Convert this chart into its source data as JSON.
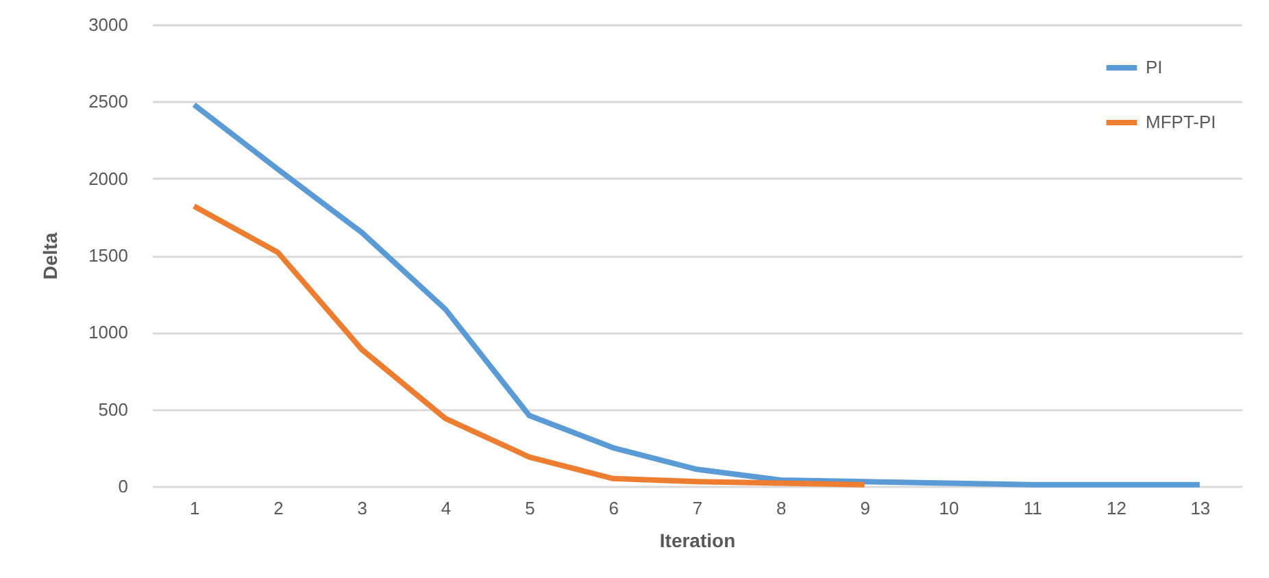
{
  "chart_data": {
    "type": "line",
    "xlabel": "Iteration",
    "ylabel": "Delta",
    "x": [
      1,
      2,
      3,
      4,
      5,
      6,
      7,
      8,
      9,
      10,
      11,
      12,
      13
    ],
    "xlim": [
      0.5,
      13.5
    ],
    "xticks": [
      1,
      2,
      3,
      4,
      5,
      6,
      7,
      8,
      9,
      10,
      11,
      12,
      13
    ],
    "series": [
      {
        "name": "PI",
        "color": "#5b9bd5",
        "values": [
          2480,
          2060,
          1650,
          1150,
          460,
          250,
          110,
          40,
          30,
          20,
          10,
          10,
          10
        ]
      },
      {
        "name": "MFPT-PI",
        "color": "#ed7d31",
        "values": [
          1820,
          1520,
          890,
          440,
          190,
          50,
          30,
          20,
          10,
          null,
          null,
          null,
          null
        ]
      }
    ],
    "ylim": [
      0,
      3000
    ],
    "yticks": [
      0,
      500,
      1000,
      1500,
      2000,
      2500,
      3000
    ],
    "grid": "y",
    "legend": "top right",
    "marker": "none",
    "line_style": "solid"
  }
}
